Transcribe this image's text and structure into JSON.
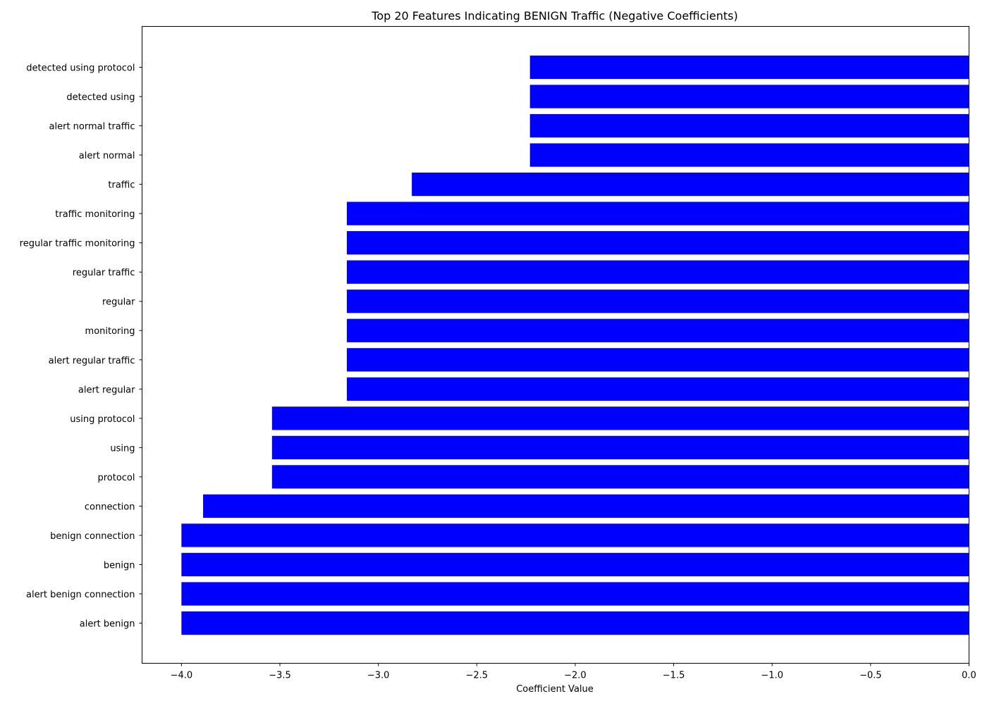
{
  "chart_data": {
    "type": "bar",
    "orientation": "horizontal",
    "title": "Top 20 Features Indicating BENIGN Traffic (Negative Coefficients)",
    "xlabel": "Coefficient Value",
    "ylabel": "",
    "xlim": [
      -4.2,
      0.0
    ],
    "xticks": [
      -4.0,
      -3.5,
      -3.0,
      -2.5,
      -2.0,
      -1.5,
      -1.0,
      -0.5,
      0.0
    ],
    "xtick_labels": [
      "−4.0",
      "−3.5",
      "−3.0",
      "−2.5",
      "−2.0",
      "−1.5",
      "−1.0",
      "−0.5",
      "0.0"
    ],
    "grid": false,
    "bar_color": "#0000ff",
    "categories": [
      "detected using protocol",
      "detected using",
      "alert normal traffic",
      "alert normal",
      "traffic",
      "traffic monitoring",
      "regular traffic monitoring",
      "regular traffic",
      "regular",
      "monitoring",
      "alert regular traffic",
      "alert regular",
      "using protocol",
      "using",
      "protocol",
      "connection",
      "benign connection",
      "benign",
      "alert benign connection",
      "alert benign"
    ],
    "values": [
      -2.23,
      -2.23,
      -2.23,
      -2.23,
      -2.83,
      -3.16,
      -3.16,
      -3.16,
      -3.16,
      -3.16,
      -3.16,
      -3.16,
      -3.54,
      -3.54,
      -3.54,
      -3.89,
      -4.0,
      -4.0,
      -4.0,
      -4.0
    ]
  }
}
